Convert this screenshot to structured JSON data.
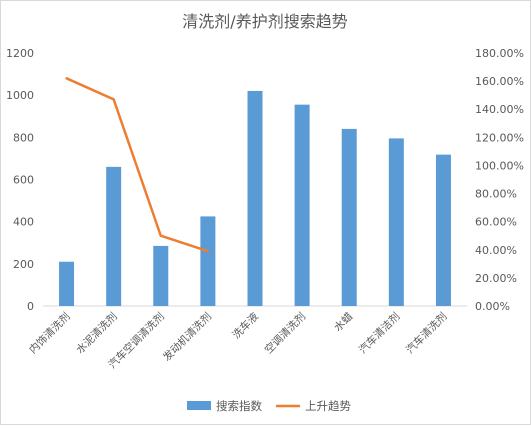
{
  "chart_data": {
    "type": "bar",
    "title": "清洗剂/养护剂搜索趋势",
    "categories": [
      "内饰清洗剂",
      "水泥清洗剂",
      "汽车空调清洗剂",
      "发动机清洗剂",
      "洗车液",
      "空调清洗剂",
      "水蜡",
      "汽车清洁剂",
      "汽车清洗剂"
    ],
    "series": [
      {
        "name": "搜索指数",
        "kind": "bar",
        "axis": "left",
        "color": "#5b9bd5",
        "values": [
          210,
          660,
          285,
          425,
          1020,
          955,
          840,
          795,
          718
        ]
      },
      {
        "name": "上升趋势",
        "kind": "line",
        "axis": "right",
        "color": "#ed7d31",
        "values": [
          1.62,
          1.47,
          0.5,
          0.39,
          null,
          null,
          null,
          null,
          null
        ]
      }
    ],
    "ylim": [
      0,
      1200
    ],
    "y_ticks": [
      "0",
      "200",
      "400",
      "600",
      "800",
      "1000",
      "1200"
    ],
    "y2lim": [
      0,
      1.8
    ],
    "y2_ticks": [
      "0.00%",
      "20.00%",
      "40.00%",
      "60.00%",
      "80.00%",
      "100.00%",
      "120.00%",
      "140.00%",
      "160.00%",
      "180.00%"
    ],
    "grid": false,
    "legend_position": "bottom"
  }
}
